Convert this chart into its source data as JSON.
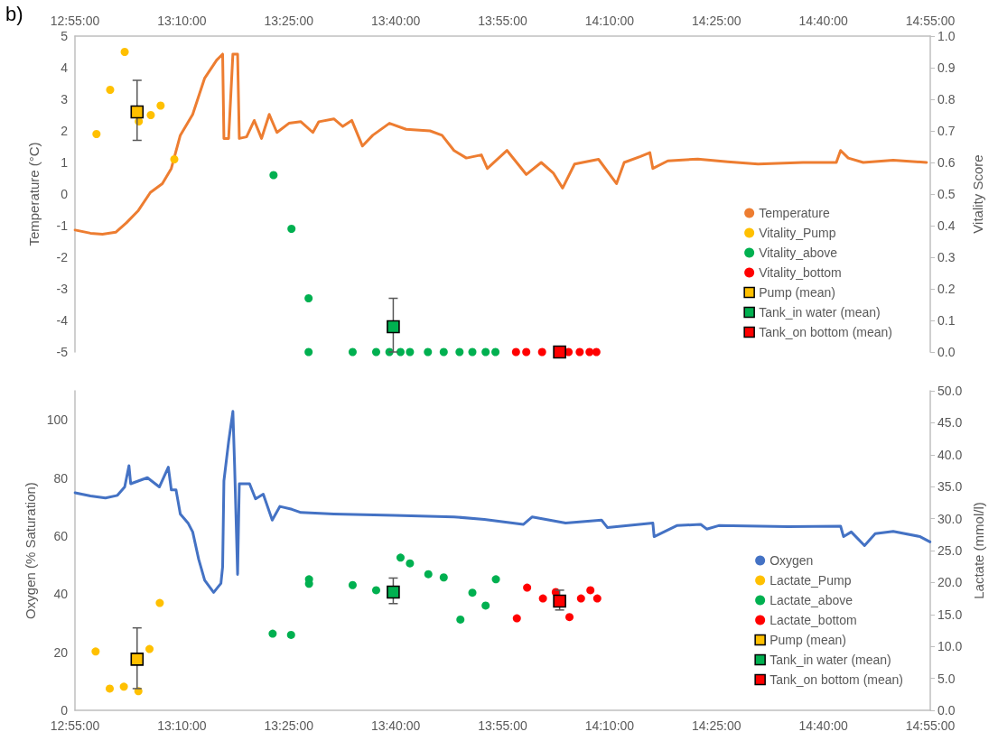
{
  "chart_data": [
    {
      "type": "scatter",
      "annotations": [
        "b)"
      ],
      "ylabel": "Temperature (°C)",
      "y2label": "Vitality Score",
      "xlim": [
        12.9167,
        14.9167
      ],
      "xticks": [
        {
          "value": 12.9167,
          "label": "12:55:00"
        },
        {
          "value": 13.1667,
          "label": "13:10:00"
        },
        {
          "value": 13.4167,
          "label": "13:25:00"
        },
        {
          "value": 13.6667,
          "label": "13:40:00"
        },
        {
          "value": 13.9167,
          "label": "13:55:00"
        },
        {
          "value": 14.1667,
          "label": "14:10:00"
        },
        {
          "value": 14.4167,
          "label": "14:25:00"
        },
        {
          "value": 14.6667,
          "label": "14:40:00"
        },
        {
          "value": 14.9167,
          "label": "14:55:00"
        }
      ],
      "ylim": [
        -5,
        5
      ],
      "yticks": [
        -5,
        -4,
        -3,
        -2,
        -1,
        0,
        1,
        2,
        3,
        4,
        5
      ],
      "y2lim": [
        0,
        1
      ],
      "y2ticks": [
        {
          "value": 0,
          "label": "0.0"
        },
        0.1,
        0.2,
        0.3,
        0.4,
        0.5,
        0.6,
        0.7,
        0.8,
        0.9,
        {
          "value": 1,
          "label": "1.0"
        }
      ],
      "grid": false,
      "legend": "bottom right",
      "marker": "circle",
      "series": [
        {
          "name": "Temperature",
          "type": "line",
          "marker": "none",
          "line_style": "solid",
          "color": "#ed7d31",
          "x": [
            12.917,
            12.953,
            12.981,
            13.012,
            13.037,
            13.065,
            13.093,
            13.121,
            13.142,
            13.163,
            13.192,
            13.22,
            13.248,
            13.262,
            13.265,
            13.276,
            13.286,
            13.297,
            13.301,
            13.318,
            13.336,
            13.353,
            13.371,
            13.389,
            13.417,
            13.445,
            13.473,
            13.487,
            13.522,
            13.543,
            13.564,
            13.589,
            13.613,
            13.652,
            13.691,
            13.747,
            13.775,
            13.803,
            13.832,
            13.867,
            13.881,
            13.927,
            13.972,
            14.007,
            14.035,
            14.057,
            14.085,
            14.141,
            14.183,
            14.201,
            14.239,
            14.261,
            14.268,
            14.303,
            14.373,
            14.443,
            14.514,
            14.619,
            14.697,
            14.707,
            14.725,
            14.76,
            14.83,
            14.908
          ],
          "values": [
            -1.14,
            -1.24,
            -1.27,
            -1.21,
            -0.91,
            -0.52,
            0.05,
            0.33,
            0.81,
            1.86,
            2.52,
            3.67,
            4.24,
            4.43,
            1.76,
            1.76,
            4.43,
            4.43,
            1.76,
            1.81,
            2.33,
            1.76,
            2.52,
            1.95,
            2.24,
            2.29,
            1.95,
            2.29,
            2.38,
            2.14,
            2.33,
            1.52,
            1.86,
            2.24,
            2.05,
            2.0,
            1.86,
            1.38,
            1.14,
            1.24,
            0.81,
            1.38,
            0.62,
            1.0,
            0.67,
            0.19,
            0.95,
            1.1,
            0.33,
            1.0,
            1.19,
            1.31,
            0.81,
            1.05,
            1.11,
            1.02,
            0.95,
            1.0,
            1.0,
            1.38,
            1.14,
            1.0,
            1.07,
            1.0
          ]
        },
        {
          "name": "Vitality_Pump",
          "axis": "y2",
          "color": "#ffc000",
          "x": [
            12.967,
            12.999,
            13.033,
            13.066,
            13.094,
            13.117,
            13.149
          ],
          "values": [
            0.69,
            0.83,
            0.95,
            0.73,
            0.75,
            0.78,
            0.61
          ]
        },
        {
          "name": "Vitality_above",
          "axis": "y2",
          "color": "#00b050",
          "x": [
            13.381,
            13.423,
            13.463,
            13.463,
            13.566,
            13.621,
            13.652,
            13.678,
            13.7,
            13.742,
            13.779,
            13.816,
            13.846,
            13.877,
            13.9
          ],
          "values": [
            0.56,
            0.39,
            0.17,
            0,
            0,
            0,
            0,
            0,
            0,
            0,
            0,
            0,
            0,
            0,
            0
          ]
        },
        {
          "name": "Vitality_bottom",
          "axis": "y2",
          "color": "#ff0000",
          "x": [
            13.948,
            13.972,
            14.009,
            14.071,
            14.097,
            14.12,
            14.136
          ],
          "values": [
            0,
            0,
            0,
            0,
            0,
            0,
            0
          ]
        },
        {
          "name": "Pump (mean)",
          "axis": "y2",
          "marker": "square",
          "color": "#ffc000",
          "x": [
            13.062
          ],
          "values": [
            0.76
          ],
          "errors": [
            [
              0.67,
              0.86
            ]
          ]
        },
        {
          "name": "Tank_in water (mean)",
          "axis": "y2",
          "marker": "square",
          "color": "#00b050",
          "x": [
            13.661
          ],
          "values": [
            0.08
          ],
          "errors": [
            [
              0,
              0.17
            ]
          ]
        },
        {
          "name": "Tank_on bottom (mean)",
          "axis": "y2",
          "marker": "square",
          "color": "#ff0000",
          "x": [
            14.05
          ],
          "values": [
            0
          ]
        }
      ]
    },
    {
      "type": "scatter",
      "ylabel": "Oxygen (% Saturation)",
      "y2label": "Lactate (mmol/l)",
      "xlim": [
        12.9167,
        14.9167
      ],
      "xticks": [
        {
          "value": 12.9167,
          "label": "12:55:00"
        },
        {
          "value": 13.1667,
          "label": "13:10:00"
        },
        {
          "value": 13.4167,
          "label": "13:25:00"
        },
        {
          "value": 13.6667,
          "label": "13:40:00"
        },
        {
          "value": 13.9167,
          "label": "13:55:00"
        },
        {
          "value": 14.1667,
          "label": "14:10:00"
        },
        {
          "value": 14.4167,
          "label": "14:25:00"
        },
        {
          "value": 14.6667,
          "label": "14:40:00"
        },
        {
          "value": 14.9167,
          "label": "14:55:00"
        }
      ],
      "ylim": [
        0,
        110
      ],
      "yticks": [
        0,
        20,
        40,
        60,
        80,
        100
      ],
      "y2lim": [
        0,
        50
      ],
      "y2ticks": [
        {
          "value": 0,
          "label": "0.0"
        },
        {
          "value": 5,
          "label": "5.0"
        },
        {
          "value": 10,
          "label": "10.0"
        },
        {
          "value": 15,
          "label": "15.0"
        },
        {
          "value": 20,
          "label": "20.0"
        },
        {
          "value": 25,
          "label": "25.0"
        },
        {
          "value": 30,
          "label": "30.0"
        },
        {
          "value": 35,
          "label": "35.0"
        },
        {
          "value": 40,
          "label": "40.0"
        },
        {
          "value": 45,
          "label": "45.0"
        },
        {
          "value": 50,
          "label": "50.0"
        }
      ],
      "grid": false,
      "legend": "bottom right",
      "marker": "circle",
      "series": [
        {
          "name": "Oxygen",
          "type": "line",
          "marker": "none",
          "line_style": "solid",
          "color": "#4472c4",
          "x": [
            12.917,
            12.953,
            12.988,
            13.016,
            13.033,
            13.043,
            13.047,
            13.086,
            13.114,
            13.135,
            13.142,
            13.153,
            13.163,
            13.181,
            13.192,
            13.206,
            13.22,
            13.241,
            13.258,
            13.262,
            13.265,
            13.276,
            13.286,
            13.29,
            13.297,
            13.301,
            13.325,
            13.339,
            13.357,
            13.378,
            13.396,
            13.424,
            13.445,
            13.522,
            13.663,
            13.803,
            13.874,
            13.965,
            13.986,
            14.064,
            14.148,
            14.162,
            14.268,
            14.271,
            14.324,
            14.38,
            14.394,
            14.422,
            14.584,
            14.707,
            14.714,
            14.732,
            14.763,
            14.788,
            14.83,
            14.893,
            14.916
          ],
          "values": [
            74.9,
            73.8,
            73.1,
            74.0,
            76.9,
            84.2,
            78.0,
            80.1,
            76.9,
            83.7,
            75.9,
            75.9,
            67.6,
            64.5,
            61.4,
            52.0,
            44.8,
            40.6,
            43.7,
            49.4,
            79.0,
            92.5,
            102.9,
            84.2,
            46.8,
            78.0,
            78.0,
            72.8,
            74.4,
            65.5,
            70.2,
            69.2,
            68.1,
            67.6,
            67.1,
            66.6,
            65.7,
            64.0,
            66.6,
            64.5,
            65.5,
            62.9,
            64.5,
            59.8,
            63.6,
            64.0,
            62.4,
            63.6,
            63.2,
            63.4,
            59.8,
            61.4,
            56.7,
            60.8,
            61.6,
            59.8,
            58.0
          ]
        },
        {
          "name": "Lactate_Pump",
          "axis": "y2",
          "color": "#ffc000",
          "x": [
            12.965,
            12.998,
            13.031,
            13.065,
            13.091,
            13.115
          ],
          "values": [
            9.2,
            3.4,
            3.7,
            3.0,
            9.6,
            16.8
          ]
        },
        {
          "name": "Lactate_above",
          "axis": "y2",
          "color": "#00b050",
          "x": [
            13.379,
            13.422,
            13.464,
            13.464,
            13.566,
            13.621,
            13.678,
            13.7,
            13.743,
            13.779,
            13.818,
            13.846,
            13.877,
            13.901
          ],
          "values": [
            12.0,
            11.8,
            20.5,
            19.8,
            19.6,
            18.8,
            23.9,
            23.0,
            21.3,
            20.8,
            14.2,
            18.4,
            16.4,
            20.5
          ]
        },
        {
          "name": "Lactate_bottom",
          "axis": "y2",
          "color": "#ff0000",
          "x": [
            13.95,
            13.974,
            14.011,
            14.041,
            14.073,
            14.1,
            14.122,
            14.138
          ],
          "values": [
            14.4,
            19.2,
            17.5,
            18.5,
            14.6,
            17.5,
            18.8,
            17.5
          ]
        },
        {
          "name": "Pump (mean)",
          "axis": "y2",
          "marker": "square",
          "color": "#ffc000",
          "x": [
            13.062
          ],
          "values": [
            8.0
          ],
          "errors": [
            [
              3.4,
              12.9
            ]
          ]
        },
        {
          "name": "Tank_in water (mean)",
          "axis": "y2",
          "marker": "square",
          "color": "#00b050",
          "x": [
            13.661
          ],
          "values": [
            18.5
          ],
          "errors": [
            [
              16.7,
              20.7
            ]
          ]
        },
        {
          "name": "Tank_on bottom (mean)",
          "axis": "y2",
          "marker": "square",
          "color": "#ff0000",
          "x": [
            14.05
          ],
          "values": [
            17.1
          ],
          "errors": [
            [
              15.7,
              18.8
            ]
          ]
        }
      ]
    }
  ]
}
